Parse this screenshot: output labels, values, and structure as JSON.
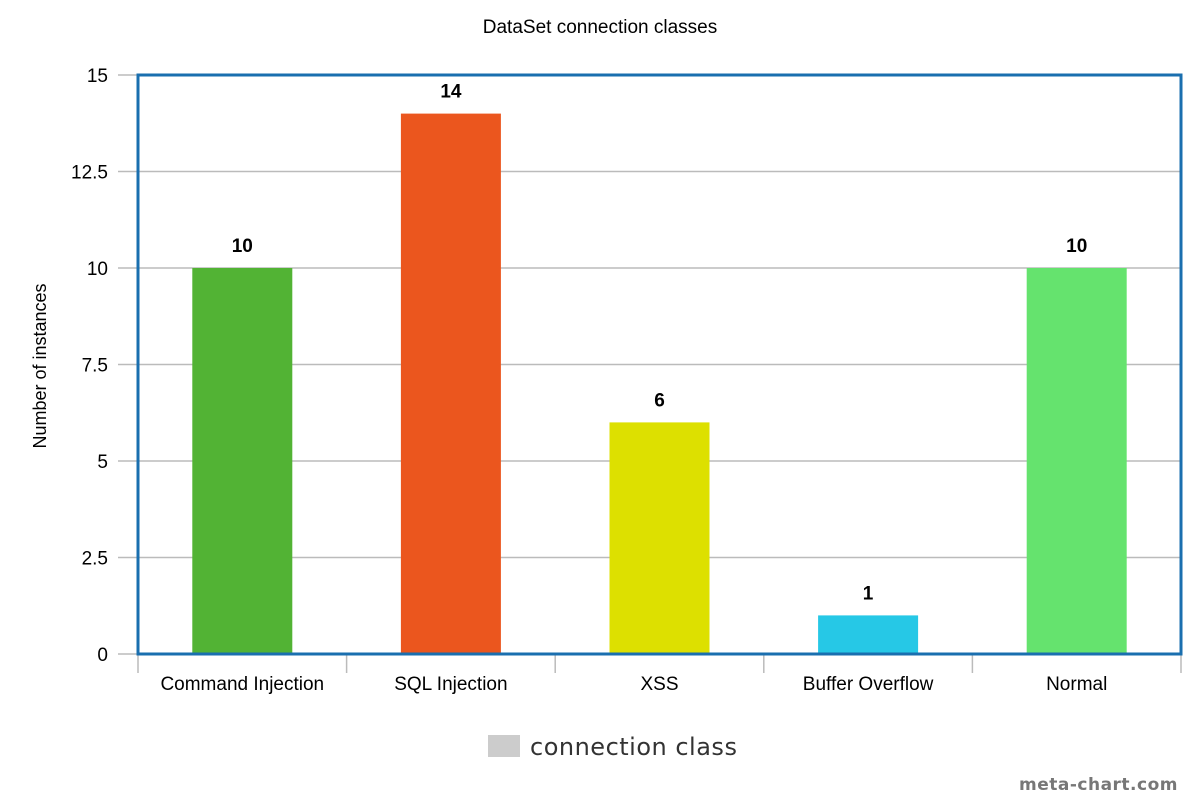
{
  "chart_data": {
    "type": "bar",
    "title": "DataSet connection classes",
    "xlabel": "",
    "ylabel": "Number of instances",
    "categories": [
      "Command Injection",
      "SQL Injection",
      "XSS",
      "Buffer Overflow",
      "Normal"
    ],
    "series": [
      {
        "name": "connection class",
        "values": [
          10,
          14,
          6,
          1,
          10
        ],
        "colors": [
          "#52b334",
          "#eb561e",
          "#dde000",
          "#26c8e6",
          "#65e36e"
        ]
      }
    ],
    "ylim": [
      0,
      15
    ],
    "yticks": [
      "0",
      "2.5",
      "5",
      "7.5",
      "10",
      "12.5",
      "15"
    ],
    "grid": true,
    "legend": "bottom-center",
    "legend_color": "#cccccc",
    "frame_color": "#1a6faf",
    "grid_color": "#bbbbbb"
  },
  "credit": "meta-chart.com"
}
